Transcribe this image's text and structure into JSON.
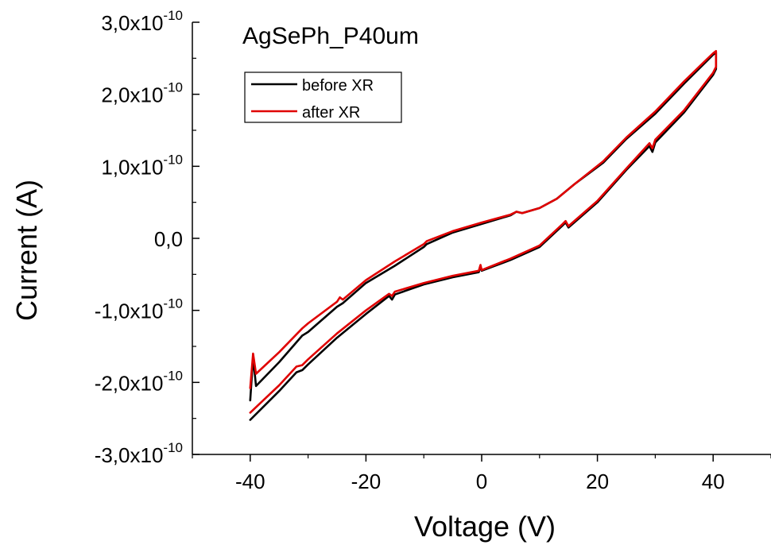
{
  "chart_data": {
    "type": "line",
    "title": "AgSePh_P40um",
    "xlabel": "Voltage (V)",
    "ylabel": "Current (A)",
    "xlim": [
      -50,
      50
    ],
    "ylim": [
      -3e-10,
      3e-10
    ],
    "x_ticks": [
      -40,
      -20,
      0,
      20,
      40
    ],
    "x_tick_labels": [
      "-40",
      "-20",
      "0",
      "20",
      "40"
    ],
    "y_ticks": [
      -3e-10,
      -2e-10,
      -1e-10,
      0,
      1e-10,
      2e-10,
      3e-10
    ],
    "y_tick_labels": [
      {
        "mantissa": "-3,0x10",
        "exp": "-10"
      },
      {
        "mantissa": "-2,0x10",
        "exp": "-10"
      },
      {
        "mantissa": "-1,0x10",
        "exp": "-10"
      },
      {
        "mantissa": "0,0",
        "exp": ""
      },
      {
        "mantissa": "1,0x10",
        "exp": "-10"
      },
      {
        "mantissa": "2,0x10",
        "exp": "-10"
      },
      {
        "mantissa": "3,0x10",
        "exp": "-10"
      }
    ],
    "grid": false,
    "legend_position": "top-left",
    "series": [
      {
        "name": "before XR",
        "color": "#000000",
        "x": [
          -40,
          -39.5,
          -39,
          -35,
          -31,
          -30,
          -25,
          -24,
          -20,
          -15,
          -10,
          -9.5,
          -5,
          0,
          5,
          6,
          7,
          10,
          13,
          16,
          21,
          25,
          30,
          35,
          40,
          40.5,
          40.5,
          40,
          35,
          30,
          29.5,
          29,
          25,
          20,
          15,
          14.5,
          14,
          10,
          5,
          0,
          -0.2,
          -0.5,
          -5,
          -10,
          -15,
          -15.5,
          -16,
          -20,
          -25,
          -30,
          -31,
          -32,
          -35,
          -40
        ],
        "y": [
          -2.25e-10,
          -1.65e-10,
          -2.05e-10,
          -1.72e-10,
          -1.35e-10,
          -1.3e-10,
          -9.5e-11,
          -9e-11,
          -6.2e-11,
          -3.8e-11,
          -1.2e-11,
          -8e-12,
          8e-12,
          2e-11,
          3.2e-11,
          3.7e-11,
          3.5e-11,
          4.2e-11,
          5.5e-11,
          7.5e-11,
          1.05e-10,
          1.38e-10,
          1.73e-10,
          2.15e-10,
          2.55e-10,
          2.58e-10,
          2.35e-10,
          2.27e-10,
          1.75e-10,
          1.33e-10,
          1.2e-10,
          1.28e-10,
          9.5e-11,
          5e-11,
          1.5e-11,
          2.2e-11,
          1.8e-11,
          -1.2e-11,
          -3e-11,
          -4.5e-11,
          -3.8e-11,
          -4.7e-11,
          -5.4e-11,
          -6.4e-11,
          -7.8e-11,
          -8.5e-11,
          -8e-11,
          -1.05e-10,
          -1.38e-10,
          -1.75e-10,
          -1.83e-10,
          -1.86e-10,
          -2.12e-10,
          -2.52e-10
        ]
      },
      {
        "name": "after XR",
        "color": "#e00000",
        "x": [
          -40,
          -39.5,
          -39,
          -35,
          -31,
          -30,
          -25,
          -24.5,
          -24,
          -20,
          -15,
          -10,
          -9.5,
          -5,
          0,
          5,
          6,
          7,
          10,
          13,
          16,
          21,
          25,
          30,
          35,
          40,
          40.5,
          40.5,
          40,
          35,
          30,
          29.5,
          29,
          25,
          20,
          15,
          14.5,
          14,
          10,
          5,
          0,
          -0.2,
          -0.5,
          -5,
          -10,
          -15,
          -15.5,
          -16,
          -20,
          -25,
          -30,
          -31,
          -32,
          -35,
          -40
        ],
        "y": [
          -2.08e-10,
          -1.6e-10,
          -1.88e-10,
          -1.58e-10,
          -1.25e-10,
          -1.18e-10,
          -8.8e-11,
          -8.2e-11,
          -8.5e-11,
          -5.8e-11,
          -3.2e-11,
          -8e-12,
          -4e-12,
          1e-11,
          2.2e-11,
          3.3e-11,
          3.7e-11,
          3.5e-11,
          4.2e-11,
          5.5e-11,
          7.5e-11,
          1.07e-10,
          1.4e-10,
          1.76e-10,
          2.18e-10,
          2.57e-10,
          2.6e-10,
          2.38e-10,
          2.3e-10,
          1.78e-10,
          1.37e-10,
          1.25e-10,
          1.32e-10,
          9.7e-11,
          5.2e-11,
          1.7e-11,
          2.4e-11,
          2e-11,
          -1e-11,
          -2.8e-11,
          -4.4e-11,
          -3.7e-11,
          -4.5e-11,
          -5.2e-11,
          -6.2e-11,
          -7.4e-11,
          -8e-11,
          -7.7e-11,
          -1e-10,
          -1.32e-10,
          -1.68e-10,
          -1.76e-10,
          -1.78e-10,
          -2.04e-10,
          -2.42e-10
        ]
      }
    ]
  }
}
